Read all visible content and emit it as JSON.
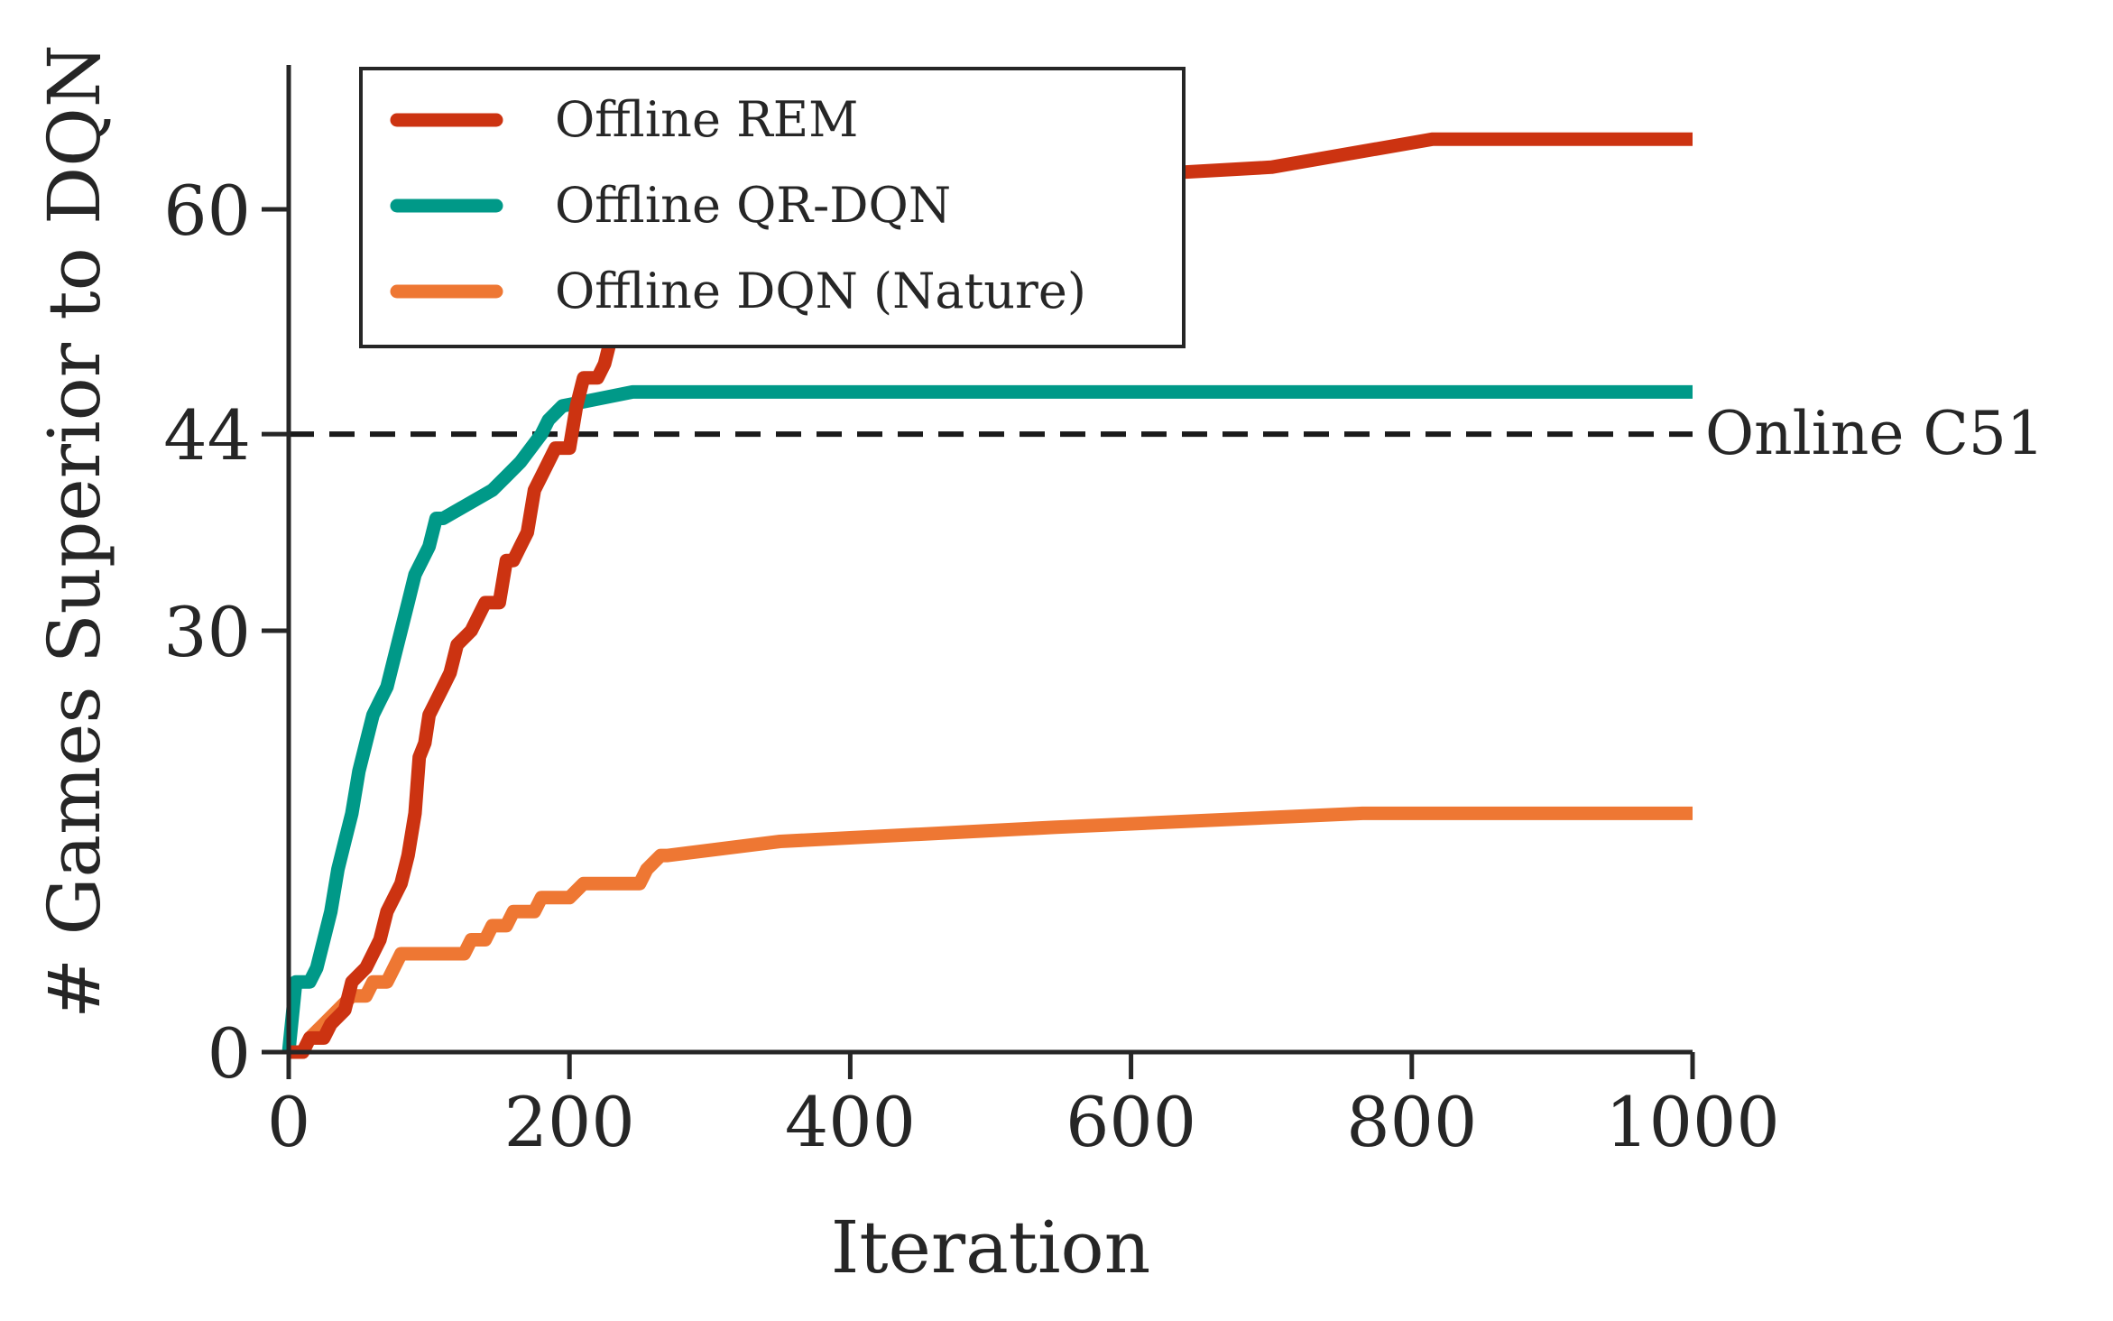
{
  "chart_data": {
    "type": "line",
    "xlabel": "Iteration",
    "ylabel": "# Games Superior to DQN",
    "xlim": [
      0,
      1000
    ],
    "ylim": [
      0,
      70
    ],
    "xticks": [
      0,
      200,
      400,
      600,
      800,
      1000
    ],
    "yticks": [
      0,
      30,
      44,
      60
    ],
    "grid": false,
    "legend_position": "top-left",
    "reference_line": {
      "y": 44,
      "label": "Online C51",
      "color": "#1a1a1a",
      "style": "dashed"
    },
    "series": [
      {
        "name": "Offline REM",
        "color": "#cc3311",
        "points": [
          [
            0,
            0
          ],
          [
            10,
            0
          ],
          [
            15,
            1
          ],
          [
            25,
            1
          ],
          [
            30,
            2
          ],
          [
            40,
            3
          ],
          [
            45,
            5
          ],
          [
            55,
            6
          ],
          [
            60,
            7
          ],
          [
            65,
            8
          ],
          [
            70,
            10
          ],
          [
            75,
            11
          ],
          [
            80,
            12
          ],
          [
            85,
            14
          ],
          [
            90,
            17
          ],
          [
            93,
            21
          ],
          [
            97,
            22
          ],
          [
            100,
            24
          ],
          [
            105,
            25
          ],
          [
            110,
            26
          ],
          [
            115,
            27
          ],
          [
            120,
            29
          ],
          [
            130,
            30
          ],
          [
            140,
            32
          ],
          [
            150,
            32
          ],
          [
            155,
            35
          ],
          [
            160,
            35
          ],
          [
            165,
            36
          ],
          [
            170,
            37
          ],
          [
            175,
            40
          ],
          [
            180,
            41
          ],
          [
            190,
            43
          ],
          [
            200,
            43
          ],
          [
            205,
            46
          ],
          [
            210,
            48
          ],
          [
            220,
            48
          ],
          [
            225,
            49
          ],
          [
            230,
            51
          ],
          [
            235,
            52
          ],
          [
            240,
            52
          ],
          [
            245,
            54
          ],
          [
            255,
            55
          ],
          [
            260,
            56
          ],
          [
            270,
            56
          ],
          [
            280,
            56
          ],
          [
            290,
            56
          ],
          [
            300,
            58
          ],
          [
            305,
            59
          ],
          [
            345,
            61
          ],
          [
            700,
            63
          ],
          [
            815,
            65
          ],
          [
            1000,
            65
          ]
        ]
      },
      {
        "name": "Offline QR-DQN",
        "color": "#009988",
        "points": [
          [
            0,
            0
          ],
          [
            5,
            5
          ],
          [
            15,
            5
          ],
          [
            20,
            6
          ],
          [
            25,
            8
          ],
          [
            30,
            10
          ],
          [
            35,
            13
          ],
          [
            40,
            15
          ],
          [
            45,
            17
          ],
          [
            50,
            20
          ],
          [
            55,
            22
          ],
          [
            60,
            24
          ],
          [
            65,
            25
          ],
          [
            70,
            26
          ],
          [
            75,
            28
          ],
          [
            80,
            30
          ],
          [
            85,
            32
          ],
          [
            90,
            34
          ],
          [
            95,
            35
          ],
          [
            100,
            36
          ],
          [
            105,
            38
          ],
          [
            110,
            38
          ],
          [
            145,
            40
          ],
          [
            155,
            41
          ],
          [
            165,
            42
          ],
          [
            180,
            44
          ],
          [
            185,
            45
          ],
          [
            195,
            46
          ],
          [
            245,
            47
          ],
          [
            255,
            47
          ],
          [
            1000,
            47
          ]
        ]
      },
      {
        "name": "Offline DQN (Nature)",
        "color": "#ee7733",
        "points": [
          [
            0,
            0
          ],
          [
            10,
            0
          ],
          [
            15,
            1
          ],
          [
            25,
            2
          ],
          [
            35,
            3
          ],
          [
            45,
            4
          ],
          [
            55,
            4
          ],
          [
            60,
            5
          ],
          [
            70,
            5
          ],
          [
            75,
            6
          ],
          [
            80,
            7
          ],
          [
            90,
            7
          ],
          [
            100,
            7
          ],
          [
            125,
            7
          ],
          [
            130,
            8
          ],
          [
            140,
            8
          ],
          [
            145,
            9
          ],
          [
            155,
            9
          ],
          [
            160,
            10
          ],
          [
            175,
            10
          ],
          [
            180,
            11
          ],
          [
            200,
            11
          ],
          [
            210,
            12
          ],
          [
            250,
            12
          ],
          [
            255,
            13
          ],
          [
            265,
            14
          ],
          [
            270,
            14
          ],
          [
            350,
            15
          ],
          [
            545,
            16
          ],
          [
            765,
            17
          ],
          [
            1000,
            17
          ]
        ]
      }
    ]
  }
}
